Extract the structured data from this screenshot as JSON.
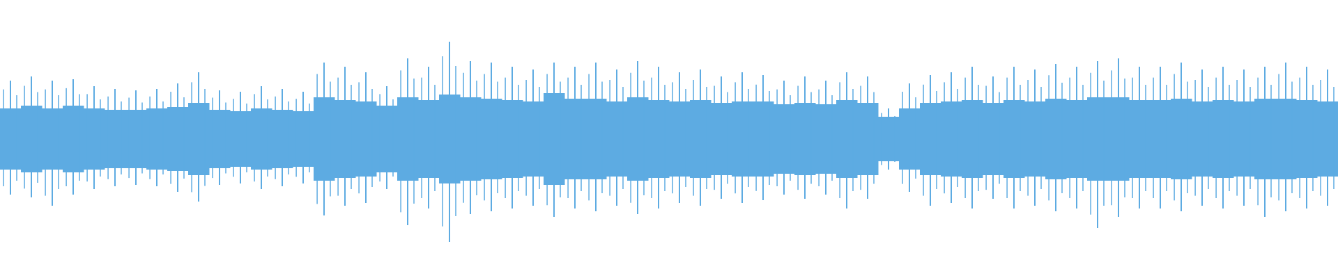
{
  "chart_data": {
    "type": "waveform",
    "color": "#5dabe2",
    "ylim": [
      -1,
      1
    ],
    "peaks": [
      0.42,
      0.45,
      0.42,
      0.43,
      0.38,
      0.36,
      0.35,
      0.36,
      0.4,
      0.48,
      0.35,
      0.34,
      0.38,
      0.36,
      0.34,
      0.55,
      0.52,
      0.48,
      0.38,
      0.58,
      0.52,
      0.7,
      0.56,
      0.55,
      0.52,
      0.5,
      0.55,
      0.52,
      0.55,
      0.5,
      0.56,
      0.52,
      0.48,
      0.5,
      0.45,
      0.48,
      0.46,
      0.42,
      0.45,
      0.42,
      0.48,
      0.45,
      0.22,
      0.4,
      0.46,
      0.48,
      0.52,
      0.45,
      0.52,
      0.5,
      0.54,
      0.52,
      0.56,
      0.58,
      0.52,
      0.52,
      0.55,
      0.5,
      0.52,
      0.5,
      0.52,
      0.55,
      0.52,
      0.5
    ],
    "troughs": [
      -0.4,
      -0.42,
      -0.48,
      -0.4,
      -0.36,
      -0.34,
      -0.33,
      -0.34,
      -0.38,
      -0.45,
      -0.33,
      -0.32,
      -0.36,
      -0.34,
      -0.32,
      -0.55,
      -0.48,
      -0.46,
      -0.36,
      -0.62,
      -0.5,
      -0.74,
      -0.54,
      -0.52,
      -0.5,
      -0.48,
      -0.56,
      -0.5,
      -0.52,
      -0.48,
      -0.54,
      -0.5,
      -0.46,
      -0.48,
      -0.43,
      -0.46,
      -0.44,
      -0.4,
      -0.43,
      -0.4,
      -0.5,
      -0.43,
      -0.22,
      -0.38,
      -0.48,
      -0.46,
      -0.5,
      -0.43,
      -0.5,
      -0.48,
      -0.52,
      -0.5,
      -0.64,
      -0.56,
      -0.5,
      -0.5,
      -0.52,
      -0.48,
      -0.5,
      -0.48,
      -0.56,
      -0.52,
      -0.5,
      -0.48
    ],
    "core": [
      0.22,
      0.24,
      0.22,
      0.24,
      0.22,
      0.21,
      0.21,
      0.22,
      0.23,
      0.26,
      0.21,
      0.2,
      0.22,
      0.21,
      0.2,
      0.3,
      0.28,
      0.27,
      0.24,
      0.3,
      0.28,
      0.32,
      0.3,
      0.29,
      0.28,
      0.27,
      0.33,
      0.29,
      0.29,
      0.27,
      0.3,
      0.28,
      0.27,
      0.28,
      0.26,
      0.27,
      0.27,
      0.25,
      0.26,
      0.25,
      0.28,
      0.26,
      0.16,
      0.22,
      0.26,
      0.27,
      0.28,
      0.26,
      0.28,
      0.27,
      0.29,
      0.28,
      0.3,
      0.3,
      0.28,
      0.28,
      0.29,
      0.27,
      0.28,
      0.27,
      0.29,
      0.29,
      0.28,
      0.27
    ]
  }
}
